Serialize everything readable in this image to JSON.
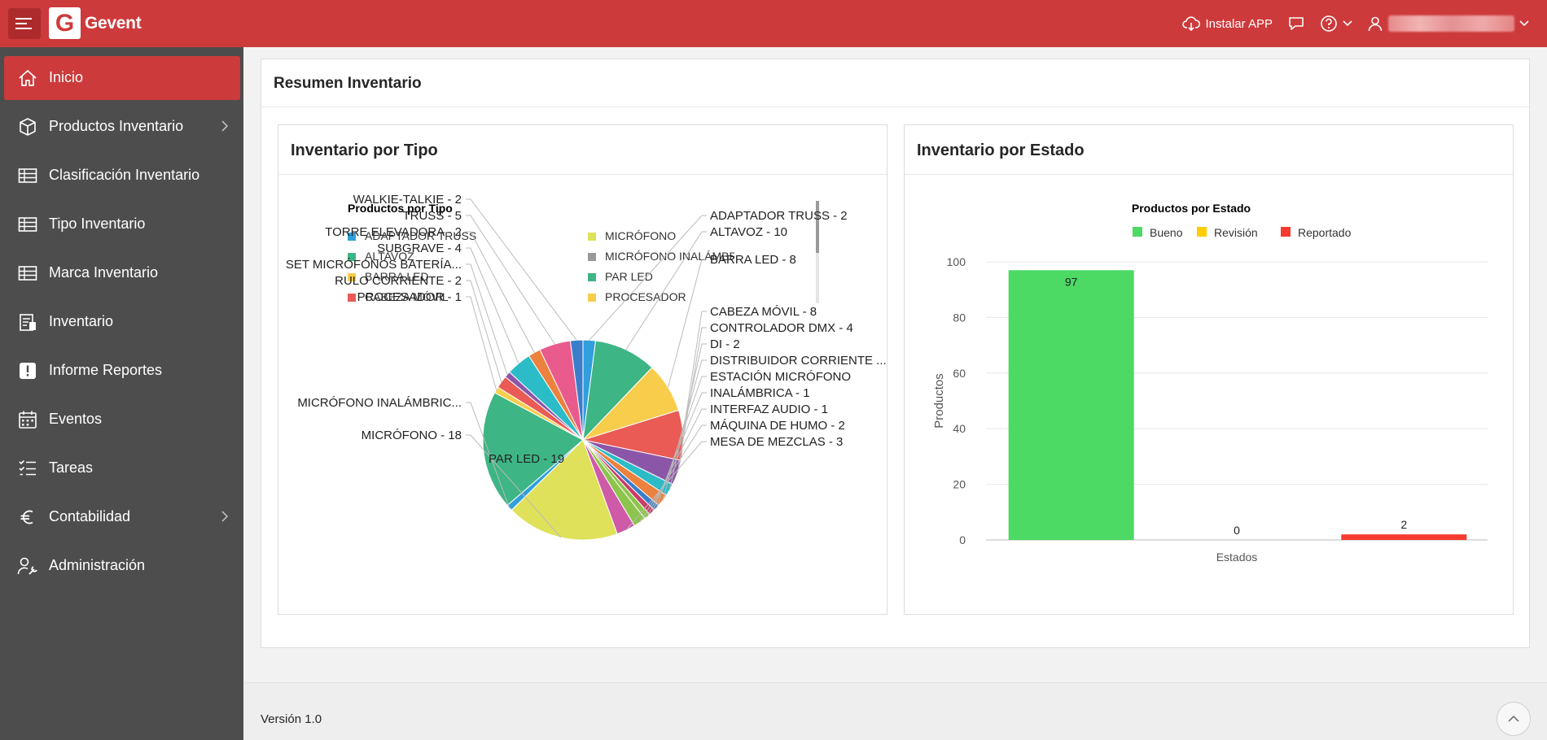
{
  "app": {
    "name": "Gevent",
    "logo_letter": "G",
    "brand_color": "#cd3a3b"
  },
  "header": {
    "install_label": "Instalar APP"
  },
  "sidebar": {
    "items": [
      {
        "label": "Inicio",
        "icon": "home-icon",
        "active": true,
        "chevron": false
      },
      {
        "label": "Productos Inventario",
        "icon": "box-icon",
        "active": false,
        "chevron": true
      },
      {
        "label": "Clasificación Inventario",
        "icon": "table-icon",
        "active": false,
        "chevron": false
      },
      {
        "label": "Tipo Inventario",
        "icon": "table-icon",
        "active": false,
        "chevron": false
      },
      {
        "label": "Marca Inventario",
        "icon": "table-icon",
        "active": false,
        "chevron": false
      },
      {
        "label": "Inventario",
        "icon": "clipboard-icon",
        "active": false,
        "chevron": false
      },
      {
        "label": "Informe Reportes",
        "icon": "alert-icon",
        "active": false,
        "chevron": false
      },
      {
        "label": "Eventos",
        "icon": "calendar-icon",
        "active": false,
        "chevron": false
      },
      {
        "label": "Tareas",
        "icon": "tasks-icon",
        "active": false,
        "chevron": false
      },
      {
        "label": "Contabilidad",
        "icon": "euro-icon",
        "active": false,
        "chevron": true
      },
      {
        "label": "Administración",
        "icon": "user-wrench-icon",
        "active": false,
        "chevron": false
      }
    ]
  },
  "region": {
    "title": "Resumen Inventario"
  },
  "cards": {
    "left_title": "Inventario por Tipo",
    "right_title": "Inventario por Estado"
  },
  "footer": {
    "version": "Versión 1.0"
  },
  "chart_data": [
    {
      "type": "pie",
      "title": "Productos por Tipo",
      "legend": [
        "ADAPTADOR TRUSS",
        "MICRÓFONO",
        "ALTAVOZ",
        "MICRÓFONO INALÁMBRICO",
        "BARRA LED",
        "PAR LED",
        "CABEZA MÓVIL",
        "PROCESADOR",
        "CONTROLADOR DMX",
        "RULO CORRIENTE"
      ],
      "slices": [
        {
          "label": "ADAPTADOR TRUSS - 2",
          "value": 2,
          "color": "#309fdb"
        },
        {
          "label": "ALTAVOZ - 10",
          "value": 10,
          "color": "#3eb584"
        },
        {
          "label": "BARRA LED - 8",
          "value": 8,
          "color": "#f8cd4c"
        },
        {
          "label": "CABEZA MÓVIL - 8",
          "value": 8,
          "color": "#e95b54"
        },
        {
          "label": "CONTROLADOR DMX - 4",
          "value": 4,
          "color": "#8b56a8"
        },
        {
          "label": "DI - 2",
          "value": 2,
          "color": "#2bbcc7"
        },
        {
          "label": "DISTRIBUIDOR CORRIENTE ...",
          "value": 2,
          "color": "#ed813e"
        },
        {
          "label": "ESTACIÓN MICRÓFONO",
          "value": 1,
          "color": "#3a7ec9"
        },
        {
          "label": "INALÁMBRICA - 1",
          "value": 1,
          "color": "#c93b68"
        },
        {
          "label": "INTERFAZ AUDIO - 1",
          "value": 1,
          "color": "#8dc44d"
        },
        {
          "label": "MÁQUINA DE HUMO - 2",
          "value": 2,
          "color": "#8dc44d"
        },
        {
          "label": "MESA DE MEZCLAS - 3",
          "value": 3,
          "color": "#cf5aa8"
        },
        {
          "label": "MICRÓFONO - 18",
          "value": 18,
          "color": "#dfe15a"
        },
        {
          "label": "MICRÓFONO INALÁMBRIC...",
          "value": 1,
          "color": "#309fdb"
        },
        {
          "label": "PAR LED - 19",
          "value": 19,
          "color": "#3eb584"
        },
        {
          "label": "PROCESADOR - 1",
          "value": 1,
          "color": "#f8cd4c"
        },
        {
          "label": "RULO CORRIENTE - 2",
          "value": 2,
          "color": "#e95b54"
        },
        {
          "label": "SET MICRÓFONOS BATERÍA...",
          "value": 1,
          "color": "#8b56a8"
        },
        {
          "label": "SUBGRAVE - 4",
          "value": 4,
          "color": "#2bbcc7"
        },
        {
          "label": "TORRE ELEVADORA - 2",
          "value": 2,
          "color": "#ed813e"
        },
        {
          "label": "TRUSS - 5",
          "value": 5,
          "color": "#e95b8c"
        },
        {
          "label": "WALKIE-TALKIE - 2",
          "value": 2,
          "color": "#3a7ec9"
        }
      ]
    },
    {
      "type": "bar",
      "title": "Productos por Estado",
      "xlabel": "Estados",
      "ylabel": "Productos",
      "ylim": [
        0,
        100
      ],
      "yticks": [
        0,
        20,
        40,
        60,
        80,
        100
      ],
      "grid": true,
      "legend_position": "top",
      "series": [
        {
          "name": "Bueno",
          "value": 97,
          "color": "#4cd964"
        },
        {
          "name": "Revisión",
          "value": 0,
          "color": "#ffcc00"
        },
        {
          "name": "Reportado",
          "value": 2,
          "color": "#f53b30"
        }
      ]
    }
  ]
}
